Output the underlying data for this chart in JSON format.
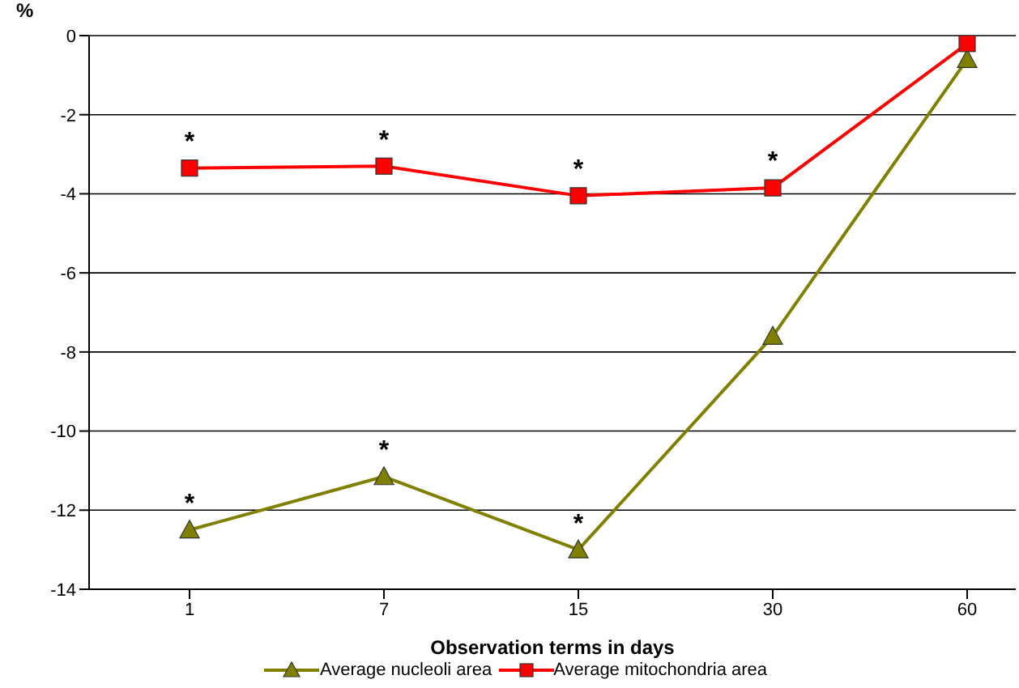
{
  "chart_data": {
    "type": "line",
    "xlabel": "Observation terms in days",
    "ylabel": "%",
    "categories": [
      "1",
      "7",
      "15",
      "30",
      "60"
    ],
    "series": [
      {
        "name": "Average nucleoli area",
        "color": "#808000",
        "marker": "triangle",
        "values": [
          -12.5,
          -11.15,
          -13.0,
          -7.6,
          -0.6
        ]
      },
      {
        "name": "Average mitochondria area",
        "color": "#ff0000",
        "marker": "square",
        "values": [
          -3.35,
          -3.3,
          -4.05,
          -3.85,
          -0.2
        ]
      }
    ],
    "ylim": [
      -14,
      0
    ],
    "yticks": [
      -14,
      -12,
      -10,
      -8,
      -6,
      -4,
      -2,
      0
    ],
    "grid": "y",
    "legend": "bottom",
    "annotations": [
      {
        "text": "*",
        "x": "1",
        "y": -3.35
      },
      {
        "text": "*",
        "x": "7",
        "y": -3.3
      },
      {
        "text": "*",
        "x": "15",
        "y": -4.05
      },
      {
        "text": "*",
        "x": "30",
        "y": -3.85
      },
      {
        "text": "*",
        "x": "1",
        "y": -12.5
      },
      {
        "text": "*",
        "x": "7",
        "y": -11.15
      },
      {
        "text": "*",
        "x": "15",
        "y": -13.0
      }
    ]
  }
}
